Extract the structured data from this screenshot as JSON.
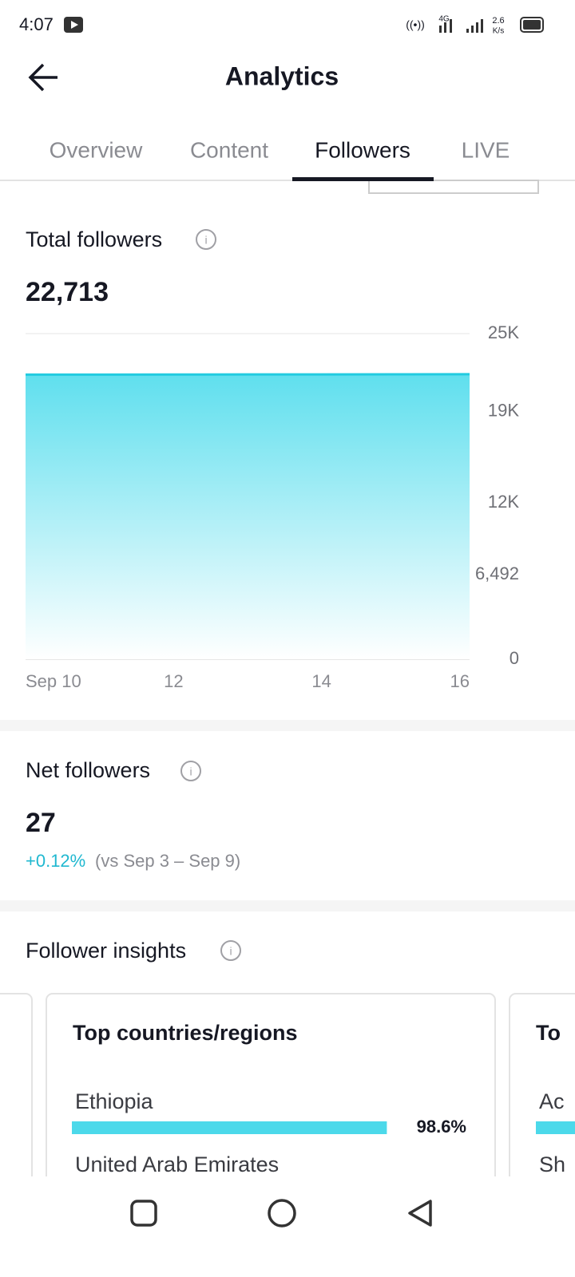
{
  "status_bar": {
    "time": "4:07",
    "network": "4G",
    "speed": "2.6",
    "speed_unit": "K/s"
  },
  "header": {
    "title": "Analytics"
  },
  "tabs": {
    "items": [
      "Overview",
      "Content",
      "Followers",
      "LIVE"
    ],
    "active": 2
  },
  "total_followers": {
    "label": "Total followers",
    "value": "22,713"
  },
  "chart_data": {
    "type": "area",
    "categories": [
      "Sep 10",
      null,
      "12",
      null,
      "14",
      null,
      "16"
    ],
    "series": [
      {
        "name": "Total followers",
        "color": "#22cbe0",
        "values": [
          21850,
          21855,
          21860,
          21865,
          21870,
          21875,
          21880
        ]
      }
    ],
    "ylim": [
      0,
      25000
    ],
    "yticks": [
      0,
      {
        "value": 6492,
        "label": "6,492"
      },
      {
        "value": 12000,
        "label": "12K"
      },
      {
        "value": 19000,
        "label": "19K"
      },
      {
        "value": 25000,
        "label": "25K"
      }
    ],
    "grid": true
  },
  "net_followers": {
    "label": "Net followers",
    "value": "27",
    "change": "+0.12%",
    "comparison": "(vs Sep 3 – Sep 9)"
  },
  "follower_insights": {
    "title": "Follower insights",
    "card": {
      "title": "Top countries/regions",
      "rows": [
        {
          "name": "Ethiopia",
          "value": 98.6,
          "value_label": "98.6%"
        },
        {
          "name": "United Arab Emirates"
        }
      ]
    },
    "next_card": {
      "title": "To",
      "rows": [
        "Ac",
        "Sh"
      ]
    }
  }
}
